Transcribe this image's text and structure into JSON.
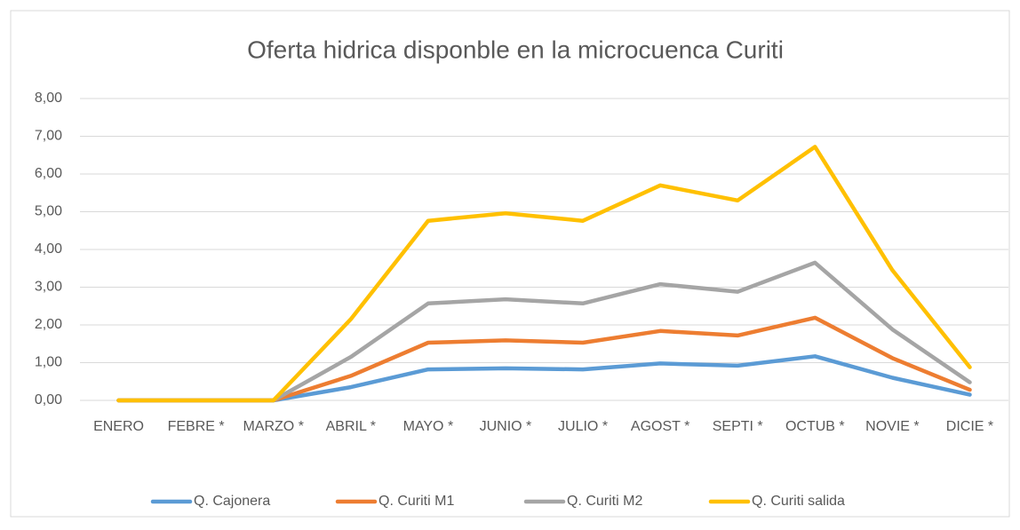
{
  "chart_data": {
    "type": "line",
    "title": "Oferta hidrica disponble en la microcuenca Curiti",
    "categories": [
      "ENERO",
      "FEBRE *",
      "MARZO *",
      "ABRIL *",
      "MAYO *",
      "JUNIO *",
      "JULIO *",
      "AGOST *",
      "SEPTI *",
      "OCTUB *",
      "NOVIE *",
      "DICIE *"
    ],
    "series": [
      {
        "name": "Q. Cajonera",
        "color": "#5b9bd5",
        "values": [
          0,
          0,
          0,
          0.35,
          0.82,
          0.85,
          0.82,
          0.98,
          0.92,
          1.17,
          0.6,
          0.15
        ]
      },
      {
        "name": "Q. Curiti M1",
        "color": "#ed7d31",
        "values": [
          0,
          0,
          0,
          0.65,
          1.53,
          1.59,
          1.53,
          1.84,
          1.72,
          2.19,
          1.12,
          0.28
        ]
      },
      {
        "name": "Q. Curiti M2",
        "color": "#a5a5a5",
        "values": [
          0,
          0,
          0,
          1.15,
          2.57,
          2.68,
          2.57,
          3.08,
          2.88,
          3.65,
          1.88,
          0.48
        ]
      },
      {
        "name": "Q. Curiti salida",
        "color": "#ffc000",
        "values": [
          0,
          0,
          0,
          2.15,
          4.76,
          4.96,
          4.76,
          5.7,
          5.3,
          6.72,
          3.45,
          0.88
        ]
      }
    ],
    "ylim": [
      0,
      8
    ],
    "yticks": [
      {
        "value": 0,
        "label": "0,00"
      },
      {
        "value": 1,
        "label": "1,00"
      },
      {
        "value": 2,
        "label": "2,00"
      },
      {
        "value": 3,
        "label": "3,00"
      },
      {
        "value": 4,
        "label": "4,00"
      },
      {
        "value": 5,
        "label": "5,00"
      },
      {
        "value": 6,
        "label": "6,00"
      },
      {
        "value": 7,
        "label": "7,00"
      },
      {
        "value": 8,
        "label": "8,00"
      }
    ],
    "grid": true,
    "legend": "bottom"
  }
}
